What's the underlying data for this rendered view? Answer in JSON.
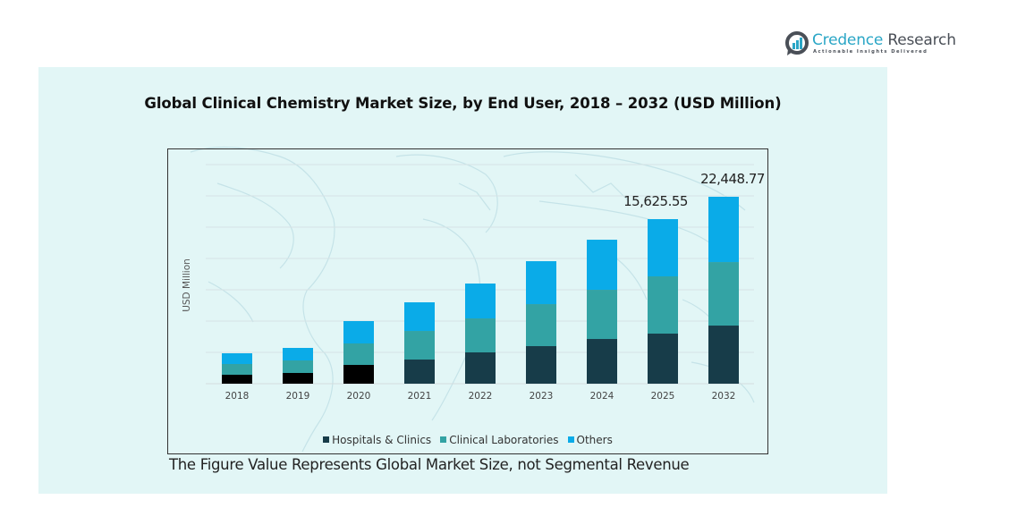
{
  "brand": {
    "name_part1": "Credence",
    "name_part2": " Research",
    "tagline": "Actionable Insights Delivered"
  },
  "footnote": "The Figure Value Represents Global Market Size, not Segmental Revenue",
  "chart_data": {
    "type": "bar",
    "stacked": true,
    "title": "Global Clinical Chemistry Market Size, by End User, 2018 – 2032 (USD Million)",
    "xlabel": "",
    "ylabel": "USD Million",
    "categories": [
      "2018",
      "2019",
      "2020",
      "2021",
      "2022",
      "2023",
      "2024",
      "2025",
      "2032"
    ],
    "series": [
      {
        "name": "Hospitals & Clinics",
        "color": "#173c49",
        "early_color": "#000000",
        "values": [
          849,
          1019,
          1783,
          2292,
          2972,
          3566,
          4245,
          4755,
          6980
        ]
      },
      {
        "name": "Clinical Laboratories",
        "color": "#33a3a4",
        "values": [
          1019,
          1189,
          2038,
          2717,
          3226,
          3990,
          4670,
          5435,
          7625
        ]
      },
      {
        "name": "Others",
        "color": "#0aabe8",
        "values": [
          1019,
          1189,
          2123,
          2717,
          3311,
          4075,
          4755,
          5435,
          7844
        ]
      }
    ],
    "annotations": [
      {
        "category": "2025",
        "text": "15,625.55",
        "value": 15625.55
      },
      {
        "category": "2032",
        "text": "22,448.77",
        "value": 22448.77
      }
    ],
    "ylim": [
      0,
      22448.77
    ],
    "y_ticks_shown": false,
    "grid": true,
    "legend": "bottom"
  }
}
